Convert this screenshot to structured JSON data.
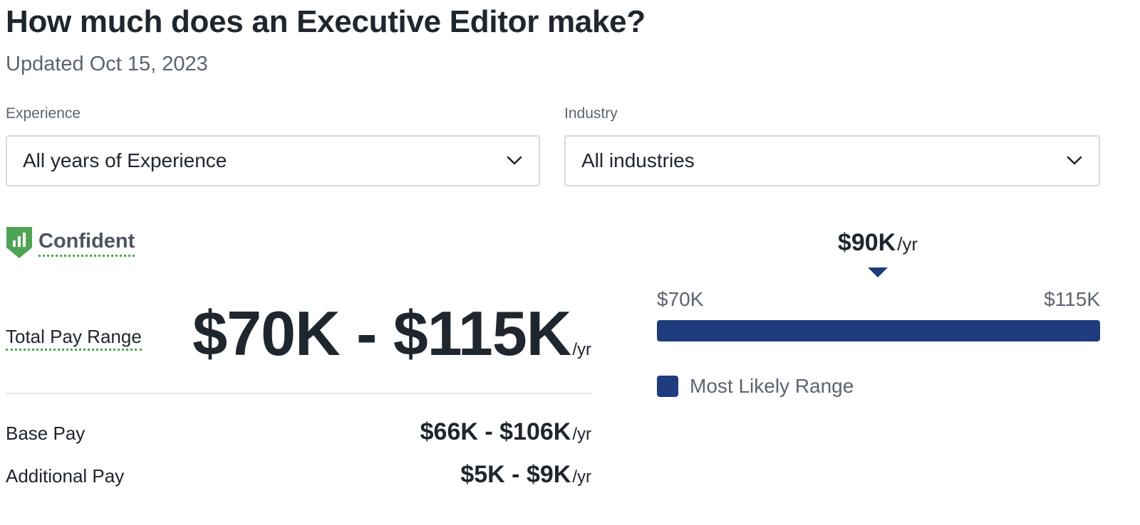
{
  "header": {
    "title": "How much does an Executive Editor make?",
    "updated": "Updated Oct 15, 2023"
  },
  "filters": {
    "experience": {
      "label": "Experience",
      "value": "All years of Experience"
    },
    "industry": {
      "label": "Industry",
      "value": "All industries"
    }
  },
  "confidence": {
    "label": "Confident",
    "icon": "shield-bar-chart-icon",
    "color": "#4ea454"
  },
  "total_pay": {
    "label": "Total Pay Range",
    "value": "$70K - $115K",
    "unit": "/yr"
  },
  "base_pay": {
    "label": "Base Pay",
    "value": "$66K - $106K",
    "unit": "/yr"
  },
  "additional_pay": {
    "label": "Additional Pay",
    "value": "$5K - $9K",
    "unit": "/yr"
  },
  "range_chart": {
    "median": "$90K",
    "median_unit": "/yr",
    "min_label": "$70K",
    "max_label": "$115K",
    "legend": "Most Likely Range",
    "bar_color": "#1e3c7e"
  }
}
